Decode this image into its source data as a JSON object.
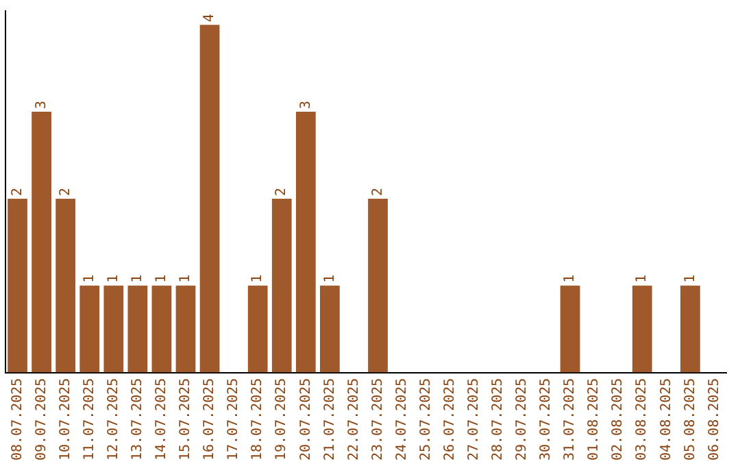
{
  "chart_data": {
    "type": "bar",
    "categories": [
      "08.07.2025",
      "09.07.2025",
      "10.07.2025",
      "11.07.2025",
      "12.07.2025",
      "13.07.2025",
      "14.07.2025",
      "15.07.2025",
      "16.07.2025",
      "17.07.2025",
      "18.07.2025",
      "19.07.2025",
      "20.07.2025",
      "21.07.2025",
      "22.07.2025",
      "23.07.2025",
      "24.07.2025",
      "25.07.2025",
      "26.07.2025",
      "27.07.2025",
      "28.07.2025",
      "29.07.2025",
      "30.07.2025",
      "31.07.2025",
      "01.08.2025",
      "02.08.2025",
      "03.08.2025",
      "04.08.2025",
      "05.08.2025",
      "06.08.2025"
    ],
    "values": [
      2,
      3,
      2,
      1,
      1,
      1,
      1,
      1,
      4,
      0,
      1,
      2,
      3,
      1,
      0,
      2,
      0,
      0,
      0,
      0,
      0,
      0,
      0,
      1,
      0,
      0,
      1,
      0,
      1,
      0
    ],
    "value_labels": [
      "2",
      "3",
      "2",
      "1",
      "1",
      "1",
      "1",
      "1",
      "4",
      null,
      "1",
      "2",
      "3",
      "1",
      null,
      "2",
      null,
      null,
      null,
      null,
      null,
      null,
      null,
      "1",
      null,
      null,
      "1",
      null,
      "1",
      null
    ],
    "color": "#a0592b",
    "grid": false,
    "legend": false,
    "tick_labels": "x"
  }
}
